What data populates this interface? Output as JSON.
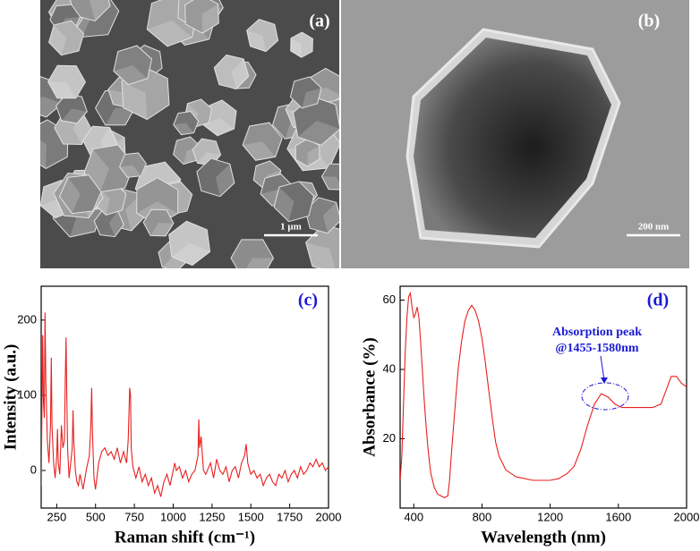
{
  "panels": [
    {
      "label": "(a)",
      "scale_bar": "1 μm"
    },
    {
      "label": "(b)",
      "scale_bar": "200 nm"
    }
  ],
  "chart_data": [
    {
      "type": "line",
      "panel_label": "(c)",
      "x_label": "Raman shift (cm⁻¹)",
      "y_label": "Intensity (a.u.)",
      "xlim": [
        150,
        2000
      ],
      "xticks": [
        250,
        500,
        750,
        1000,
        1250,
        1500,
        1750,
        2000
      ],
      "ylim": [
        -50,
        245
      ],
      "yticks": [
        0,
        100,
        200
      ],
      "color": "#e8201f",
      "x": [
        150,
        160,
        165,
        170,
        175,
        180,
        190,
        200,
        210,
        215,
        220,
        230,
        240,
        250,
        255,
        260,
        270,
        280,
        290,
        300,
        305,
        310,
        315,
        320,
        330,
        340,
        350,
        355,
        360,
        370,
        380,
        390,
        400,
        420,
        440,
        460,
        470,
        475,
        480,
        490,
        500,
        520,
        540,
        560,
        580,
        600,
        620,
        640,
        660,
        680,
        700,
        710,
        720,
        725,
        730,
        740,
        760,
        780,
        800,
        820,
        840,
        860,
        880,
        900,
        920,
        940,
        960,
        980,
        1000,
        1010,
        1020,
        1040,
        1060,
        1080,
        1100,
        1120,
        1140,
        1160,
        1165,
        1170,
        1180,
        1188,
        1195,
        1210,
        1240,
        1260,
        1280,
        1300,
        1320,
        1340,
        1360,
        1380,
        1400,
        1420,
        1440,
        1460,
        1470,
        1480,
        1500,
        1520,
        1540,
        1560,
        1580,
        1600,
        1620,
        1640,
        1660,
        1680,
        1700,
        1720,
        1740,
        1760,
        1780,
        1800,
        1820,
        1840,
        1860,
        1880,
        1900,
        1920,
        1940,
        1960,
        1980,
        2000
      ],
      "values": [
        -20,
        180,
        90,
        70,
        210,
        120,
        40,
        10,
        60,
        150,
        60,
        10,
        -10,
        20,
        55,
        10,
        -5,
        60,
        30,
        40,
        120,
        177,
        100,
        30,
        -10,
        10,
        30,
        80,
        40,
        0,
        -15,
        -20,
        -5,
        -25,
        0,
        20,
        60,
        110,
        50,
        -10,
        -25,
        10,
        25,
        30,
        20,
        25,
        15,
        30,
        10,
        25,
        10,
        40,
        110,
        100,
        30,
        5,
        -10,
        5,
        -15,
        -5,
        -20,
        -10,
        -30,
        -20,
        -35,
        -15,
        -5,
        -20,
        0,
        10,
        0,
        5,
        -10,
        0,
        -15,
        -5,
        0,
        20,
        68,
        30,
        45,
        20,
        0,
        -5,
        10,
        -10,
        15,
        0,
        -5,
        5,
        -15,
        0,
        5,
        -10,
        10,
        20,
        35,
        10,
        -5,
        0,
        -10,
        -5,
        -20,
        -10,
        -5,
        -15,
        -20,
        -5,
        -10,
        0,
        -15,
        -5,
        0,
        -10,
        5,
        -5,
        0,
        10,
        5,
        15,
        5,
        10,
        0,
        5
      ]
    },
    {
      "type": "line",
      "panel_label": "(d)",
      "x_label": "Wavelength (nm)",
      "y_label": "Absorbance (%)",
      "xlim": [
        320,
        2000
      ],
      "xticks": [
        400,
        800,
        1200,
        1600,
        2000
      ],
      "ylim": [
        0,
        64
      ],
      "yticks": [
        20,
        40,
        60
      ],
      "color": "#e8201f",
      "annotations": [
        "Absorption peak",
        "@1455-1580nm"
      ],
      "x": [
        320,
        330,
        340,
        350,
        360,
        370,
        380,
        390,
        400,
        410,
        420,
        430,
        440,
        450,
        460,
        470,
        480,
        490,
        500,
        520,
        540,
        560,
        580,
        600,
        610,
        620,
        640,
        660,
        680,
        700,
        720,
        740,
        760,
        780,
        800,
        820,
        840,
        860,
        880,
        900,
        940,
        1000,
        1100,
        1200,
        1250,
        1300,
        1340,
        1380,
        1420,
        1460,
        1500,
        1540,
        1580,
        1620,
        1660,
        1700,
        1750,
        1800,
        1850,
        1880,
        1910,
        1940,
        1970,
        2000
      ],
      "values": [
        8,
        15,
        30,
        45,
        55,
        61,
        62,
        58,
        55,
        56,
        58,
        55,
        48,
        40,
        32,
        25,
        19,
        14,
        10,
        6,
        4,
        3.5,
        3,
        3.5,
        8,
        15,
        28,
        40,
        48,
        54,
        57,
        58.5,
        57,
        54,
        49,
        42,
        34,
        26,
        19,
        15,
        11,
        9,
        8,
        8,
        8.5,
        10,
        12,
        17,
        24,
        30,
        33,
        32,
        30,
        29,
        29,
        29,
        29,
        29,
        30,
        34,
        38,
        38,
        36,
        35
      ]
    }
  ]
}
